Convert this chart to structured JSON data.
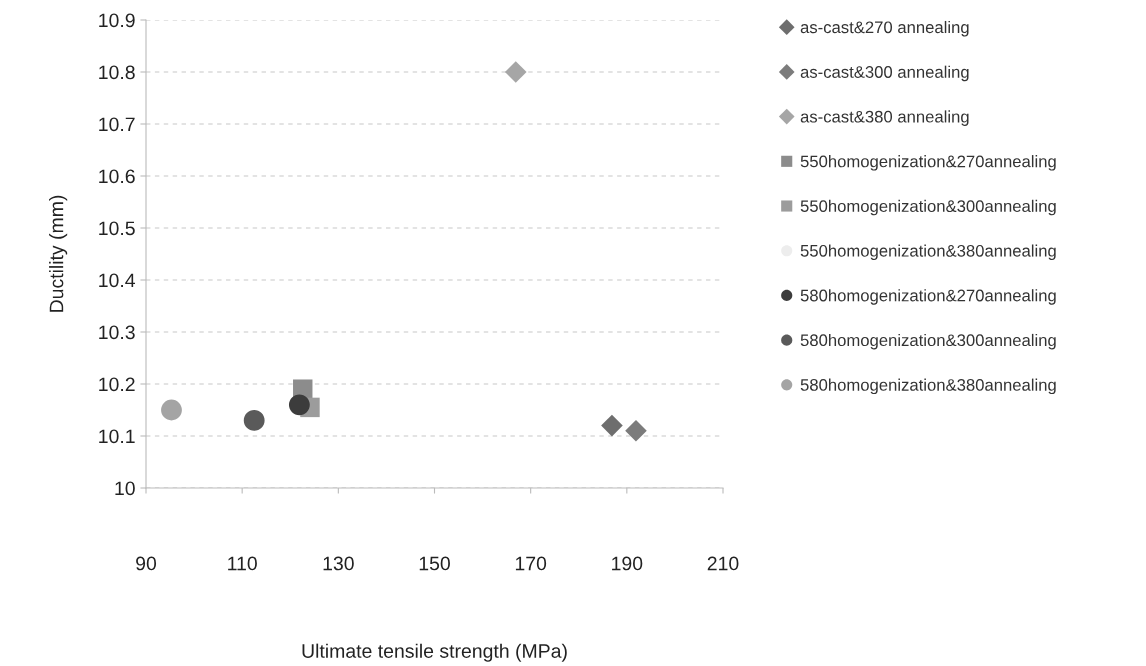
{
  "chart_data": {
    "type": "scatter",
    "xlabel": "Ultimate tensile strength (MPa)",
    "ylabel": "Ductility (mm)",
    "xlim": [
      90,
      210
    ],
    "xticks": [
      90,
      110,
      130,
      150,
      170,
      190,
      210
    ],
    "ylim": [
      10,
      10.9
    ],
    "yticks": [
      10,
      10.1,
      10.2,
      10.3,
      10.4,
      10.5,
      10.6,
      10.7,
      10.8,
      10.9
    ],
    "grid": "y",
    "legend": "right",
    "series": [
      {
        "name": "as-cast&270 annealing",
        "color": "#6e6e6e",
        "marker": "diamond",
        "x": [
          186.9
        ],
        "values": [
          10.12
        ]
      },
      {
        "name": "as-cast&300 annealing",
        "color": "#7c7c7c",
        "marker": "diamond",
        "x": [
          191.9
        ],
        "values": [
          10.11
        ]
      },
      {
        "name": "as-cast&380 annealing",
        "color": "#a6a6a6",
        "marker": "diamond",
        "x": [
          166.9
        ],
        "values": [
          10.8
        ]
      },
      {
        "name": "550homogenization&270annealing",
        "color": "#8c8c8c",
        "marker": "square",
        "x": [
          122.6
        ],
        "values": [
          10.19
        ]
      },
      {
        "name": "550homogenization&300annealing",
        "color": "#9c9c9c",
        "marker": "square",
        "x": [
          124.1
        ],
        "values": [
          10.155
        ]
      },
      {
        "name": "550homogenization&380annealing",
        "color": "#ededed",
        "marker": "circle"
      },
      {
        "name": "580homogenization&270annealing",
        "color": "#3c3c3c",
        "marker": "circle",
        "x": [
          121.9
        ],
        "values": [
          10.16
        ]
      },
      {
        "name": "580homogenization&300annealing",
        "color": "#5a5a5a",
        "marker": "circle",
        "x": [
          112.5
        ],
        "values": [
          10.13
        ]
      },
      {
        "name": "580homogenization&380annealing",
        "color": "#a4a4a4",
        "marker": "circle",
        "x": [
          95.3
        ],
        "values": [
          10.15
        ]
      }
    ]
  }
}
